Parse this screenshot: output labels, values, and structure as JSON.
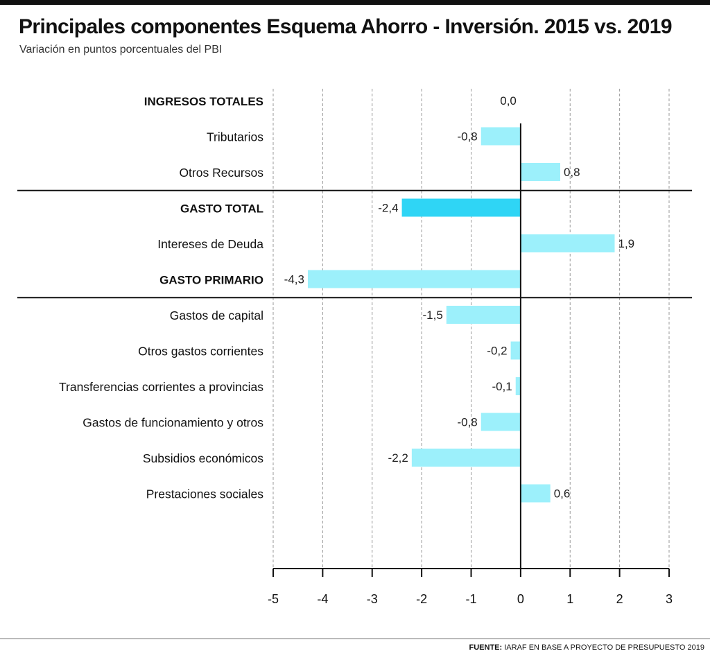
{
  "header": {
    "title": "Principales componentes Esquema Ahorro - Inversión. 2015 vs. 2019",
    "subtitle": "Variación en puntos porcentuales del PBI"
  },
  "footer": {
    "source_label": "FUENTE:",
    "source_text": " IARAF EN BASE A PROYECTO DE PRESUPUESTO 2019"
  },
  "colors": {
    "bar": "#9cf0fb",
    "highlight_bar": "#2fd5f5",
    "axis": "#111111",
    "grid": "#999999"
  },
  "chart_data": {
    "type": "bar",
    "orientation": "horizontal",
    "title": "Principales componentes Esquema Ahorro - Inversión. 2015 vs. 2019",
    "subtitle": "Variación en puntos porcentuales del PBI",
    "xlabel": "",
    "ylabel": "",
    "xlim": [
      -5,
      3
    ],
    "x_ticks": [
      -5,
      -4,
      -3,
      -2,
      -1,
      0,
      1,
      2,
      3
    ],
    "grid": "vertical dashed",
    "categories": [
      "INGRESOS TOTALES",
      "Tributarios",
      "Otros Recursos",
      "GASTO TOTAL",
      "Intereses de Deuda",
      "GASTO PRIMARIO",
      "Gastos de capital",
      "Otros gastos corrientes",
      "Transferencias corrientes a provincias",
      "Gastos de funcionamiento y otros",
      "Subsidios económicos",
      "Prestaciones sociales"
    ],
    "values": [
      0.0,
      -0.8,
      0.8,
      -2.4,
      1.9,
      -4.3,
      -1.5,
      -0.2,
      -0.1,
      -0.8,
      -2.2,
      0.6
    ],
    "value_labels": [
      "0,0",
      "-0,8",
      "0,8",
      "-2,4",
      "1,9",
      "-4,3",
      "-1,5",
      "-0,2",
      "-0,1",
      "-0,8",
      "-2,2",
      "0,6"
    ],
    "bold_categories": [
      "INGRESOS TOTALES",
      "GASTO TOTAL",
      "GASTO PRIMARIO"
    ],
    "highlighted_category": "GASTO TOTAL",
    "group_separators_after": [
      "Otros Recursos",
      "GASTO PRIMARIO"
    ]
  }
}
